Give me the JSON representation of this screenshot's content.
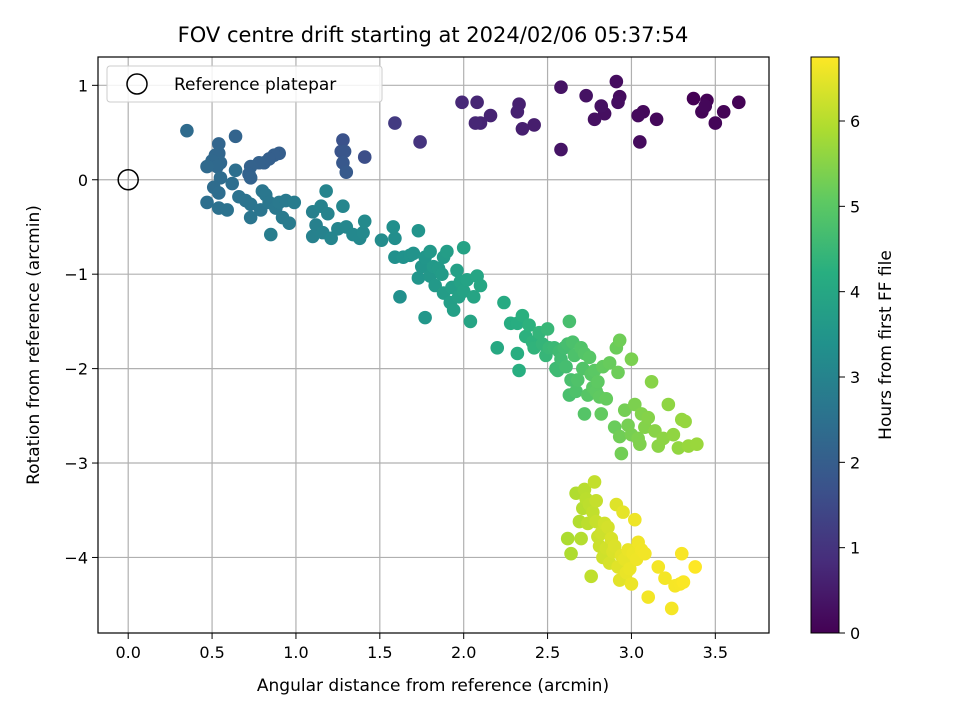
{
  "chart_data": {
    "type": "scatter",
    "title": "FOV centre drift starting at 2024/02/06 05:37:54",
    "xlabel": "Angular distance from reference (arcmin)",
    "ylabel": "Rotation from reference (arcmin)",
    "xlim": [
      -0.18,
      3.82
    ],
    "ylim": [
      -4.8,
      1.3
    ],
    "xticks": [
      0.0,
      0.5,
      1.0,
      1.5,
      2.0,
      2.5,
      3.0,
      3.5
    ],
    "xtick_labels": [
      "0.0",
      "0.5",
      "1.0",
      "1.5",
      "2.0",
      "2.5",
      "3.0",
      "3.5"
    ],
    "yticks": [
      1,
      0,
      -1,
      -2,
      -3,
      -4
    ],
    "ytick_labels": [
      "1",
      "0",
      "−1",
      "−2",
      "−3",
      "−4"
    ],
    "grid": true,
    "legend": {
      "placement": "top-left",
      "entries": [
        {
          "label": "Reference platepar",
          "marker": "open-circle",
          "x": 0.0,
          "y": 0.0
        }
      ]
    },
    "colorbar": {
      "label": "Hours from first FF file",
      "colormap": "viridis",
      "range": [
        0,
        6.75
      ],
      "ticks": [
        0,
        1,
        2,
        3,
        4,
        5,
        6
      ],
      "tick_labels": [
        "0",
        "1",
        "2",
        "3",
        "4",
        "5",
        "6"
      ]
    },
    "points": [
      {
        "x": 3.37,
        "y": 0.86,
        "t": 0.0
      },
      {
        "x": 3.45,
        "y": 0.84,
        "t": 0.02
      },
      {
        "x": 3.64,
        "y": 0.82,
        "t": 0.03
      },
      {
        "x": 3.55,
        "y": 0.72,
        "t": 0.05
      },
      {
        "x": 3.42,
        "y": 0.72,
        "t": 0.07
      },
      {
        "x": 3.5,
        "y": 0.6,
        "t": 0.09
      },
      {
        "x": 3.44,
        "y": 0.78,
        "t": 0.11
      },
      {
        "x": 3.15,
        "y": 0.64,
        "t": 0.13
      },
      {
        "x": 3.07,
        "y": 0.72,
        "t": 0.15
      },
      {
        "x": 3.04,
        "y": 0.68,
        "t": 0.17
      },
      {
        "x": 3.05,
        "y": 0.4,
        "t": 0.19
      },
      {
        "x": 2.93,
        "y": 0.88,
        "t": 0.21
      },
      {
        "x": 2.91,
        "y": 1.04,
        "t": 0.23
      },
      {
        "x": 2.92,
        "y": 0.82,
        "t": 0.25
      },
      {
        "x": 2.84,
        "y": 0.7,
        "t": 0.27
      },
      {
        "x": 2.78,
        "y": 0.64,
        "t": 0.29
      },
      {
        "x": 2.82,
        "y": 0.78,
        "t": 0.31
      },
      {
        "x": 2.73,
        "y": 0.89,
        "t": 0.33
      },
      {
        "x": 2.58,
        "y": 0.98,
        "t": 0.35
      },
      {
        "x": 2.58,
        "y": 0.32,
        "t": 0.37
      },
      {
        "x": 2.42,
        "y": 0.58,
        "t": 0.55
      },
      {
        "x": 2.35,
        "y": 0.54,
        "t": 0.58
      },
      {
        "x": 2.33,
        "y": 0.8,
        "t": 0.6
      },
      {
        "x": 2.32,
        "y": 0.72,
        "t": 0.62
      },
      {
        "x": 2.16,
        "y": 0.68,
        "t": 0.65
      },
      {
        "x": 2.1,
        "y": 0.6,
        "t": 0.68
      },
      {
        "x": 2.08,
        "y": 0.82,
        "t": 0.7
      },
      {
        "x": 2.07,
        "y": 0.6,
        "t": 0.72
      },
      {
        "x": 1.99,
        "y": 0.82,
        "t": 0.75
      },
      {
        "x": 1.74,
        "y": 0.4,
        "t": 1.0
      },
      {
        "x": 1.59,
        "y": 0.6,
        "t": 1.15
      },
      {
        "x": 1.41,
        "y": 0.24,
        "t": 1.6
      },
      {
        "x": 1.28,
        "y": 0.42,
        "t": 1.7
      },
      {
        "x": 1.27,
        "y": 0.3,
        "t": 1.75
      },
      {
        "x": 1.29,
        "y": 0.3,
        "t": 1.8
      },
      {
        "x": 1.28,
        "y": 0.18,
        "t": 1.85
      },
      {
        "x": 1.3,
        "y": 0.08,
        "t": 1.9
      },
      {
        "x": 0.9,
        "y": 0.28,
        "t": 2.0
      },
      {
        "x": 0.87,
        "y": 0.26,
        "t": 2.02
      },
      {
        "x": 0.84,
        "y": 0.22,
        "t": 2.04
      },
      {
        "x": 0.81,
        "y": 0.18,
        "t": 2.06
      },
      {
        "x": 0.78,
        "y": 0.18,
        "t": 2.08
      },
      {
        "x": 0.73,
        "y": 0.14,
        "t": 2.1
      },
      {
        "x": 0.72,
        "y": 0.06,
        "t": 2.12
      },
      {
        "x": 0.73,
        "y": 0.02,
        "t": 2.14
      },
      {
        "x": 0.64,
        "y": 0.46,
        "t": 2.16
      },
      {
        "x": 0.54,
        "y": 0.38,
        "t": 2.2
      },
      {
        "x": 0.54,
        "y": 0.28,
        "t": 2.22
      },
      {
        "x": 0.52,
        "y": 0.26,
        "t": 2.24
      },
      {
        "x": 0.55,
        "y": 0.18,
        "t": 2.26
      },
      {
        "x": 0.5,
        "y": 0.2,
        "t": 2.28
      },
      {
        "x": 0.53,
        "y": 0.14,
        "t": 2.3
      },
      {
        "x": 0.47,
        "y": 0.14,
        "t": 2.32
      },
      {
        "x": 0.35,
        "y": 0.52,
        "t": 2.34
      },
      {
        "x": 0.55,
        "y": 0.02,
        "t": 2.36
      },
      {
        "x": 0.51,
        "y": -0.08,
        "t": 2.38
      },
      {
        "x": 0.54,
        "y": -0.14,
        "t": 2.4
      },
      {
        "x": 0.62,
        "y": -0.04,
        "t": 2.42
      },
      {
        "x": 0.64,
        "y": 0.1,
        "t": 2.44
      },
      {
        "x": 0.47,
        "y": -0.24,
        "t": 2.46
      },
      {
        "x": 0.54,
        "y": -0.3,
        "t": 2.5
      },
      {
        "x": 0.59,
        "y": -0.32,
        "t": 2.52
      },
      {
        "x": 0.66,
        "y": -0.18,
        "t": 2.54
      },
      {
        "x": 0.7,
        "y": -0.22,
        "t": 2.56
      },
      {
        "x": 0.73,
        "y": -0.26,
        "t": 2.58
      },
      {
        "x": 0.79,
        "y": -0.32,
        "t": 2.6
      },
      {
        "x": 0.73,
        "y": -0.4,
        "t": 2.62
      },
      {
        "x": 0.8,
        "y": -0.12,
        "t": 2.64
      },
      {
        "x": 0.82,
        "y": -0.16,
        "t": 2.66
      },
      {
        "x": 0.84,
        "y": -0.24,
        "t": 2.68
      },
      {
        "x": 0.88,
        "y": -0.3,
        "t": 2.7
      },
      {
        "x": 0.9,
        "y": -0.24,
        "t": 2.72
      },
      {
        "x": 0.94,
        "y": -0.22,
        "t": 2.74
      },
      {
        "x": 0.92,
        "y": -0.4,
        "t": 2.76
      },
      {
        "x": 0.96,
        "y": -0.46,
        "t": 2.78
      },
      {
        "x": 0.99,
        "y": -0.24,
        "t": 2.8
      },
      {
        "x": 0.85,
        "y": -0.58,
        "t": 2.82
      },
      {
        "x": 1.1,
        "y": -0.34,
        "t": 2.9
      },
      {
        "x": 1.12,
        "y": -0.48,
        "t": 2.92
      },
      {
        "x": 1.1,
        "y": -0.6,
        "t": 2.94
      },
      {
        "x": 1.16,
        "y": -0.56,
        "t": 2.96
      },
      {
        "x": 1.15,
        "y": -0.28,
        "t": 2.98
      },
      {
        "x": 1.19,
        "y": -0.36,
        "t": 3.0
      },
      {
        "x": 1.18,
        "y": -0.12,
        "t": 3.02
      },
      {
        "x": 1.21,
        "y": -0.62,
        "t": 3.04
      },
      {
        "x": 1.25,
        "y": -0.52,
        "t": 3.06
      },
      {
        "x": 1.28,
        "y": -0.28,
        "t": 3.08
      },
      {
        "x": 1.3,
        "y": -0.5,
        "t": 3.1
      },
      {
        "x": 1.34,
        "y": -0.58,
        "t": 3.12
      },
      {
        "x": 1.38,
        "y": -0.62,
        "t": 3.14
      },
      {
        "x": 1.4,
        "y": -0.56,
        "t": 3.16
      },
      {
        "x": 1.41,
        "y": -0.44,
        "t": 3.18
      },
      {
        "x": 1.51,
        "y": -0.64,
        "t": 3.25
      },
      {
        "x": 1.59,
        "y": -0.62,
        "t": 3.3
      },
      {
        "x": 1.58,
        "y": -0.5,
        "t": 3.32
      },
      {
        "x": 1.59,
        "y": -0.82,
        "t": 3.34
      },
      {
        "x": 1.62,
        "y": -1.24,
        "t": 3.36
      },
      {
        "x": 1.64,
        "y": -0.82,
        "t": 3.4
      },
      {
        "x": 1.68,
        "y": -0.8,
        "t": 3.42
      },
      {
        "x": 1.7,
        "y": -0.78,
        "t": 3.44
      },
      {
        "x": 1.73,
        "y": -0.54,
        "t": 3.46
      },
      {
        "x": 1.73,
        "y": -1.04,
        "t": 3.48
      },
      {
        "x": 1.75,
        "y": -0.92,
        "t": 3.5
      },
      {
        "x": 1.77,
        "y": -0.82,
        "t": 3.52
      },
      {
        "x": 1.77,
        "y": -1.46,
        "t": 3.54
      },
      {
        "x": 1.8,
        "y": -1.02,
        "t": 3.56
      },
      {
        "x": 1.8,
        "y": -0.76,
        "t": 3.58
      },
      {
        "x": 1.82,
        "y": -0.92,
        "t": 3.6
      },
      {
        "x": 1.83,
        "y": -1.12,
        "t": 3.62
      },
      {
        "x": 1.85,
        "y": -0.94,
        "t": 3.64
      },
      {
        "x": 1.87,
        "y": -1.0,
        "t": 3.66
      },
      {
        "x": 1.88,
        "y": -0.82,
        "t": 3.68
      },
      {
        "x": 1.88,
        "y": -1.2,
        "t": 3.7
      },
      {
        "x": 1.9,
        "y": -0.76,
        "t": 3.72
      },
      {
        "x": 1.92,
        "y": -1.3,
        "t": 3.74
      },
      {
        "x": 1.93,
        "y": -1.14,
        "t": 3.76
      },
      {
        "x": 1.94,
        "y": -1.38,
        "t": 3.78
      },
      {
        "x": 1.96,
        "y": -0.96,
        "t": 3.8
      },
      {
        "x": 1.97,
        "y": -1.24,
        "t": 3.82
      },
      {
        "x": 1.98,
        "y": -1.08,
        "t": 3.84
      },
      {
        "x": 2.0,
        "y": -0.72,
        "t": 3.86
      },
      {
        "x": 2.0,
        "y": -1.18,
        "t": 3.88
      },
      {
        "x": 2.02,
        "y": -1.06,
        "t": 3.9
      },
      {
        "x": 2.04,
        "y": -1.5,
        "t": 3.92
      },
      {
        "x": 2.06,
        "y": -1.24,
        "t": 3.94
      },
      {
        "x": 2.08,
        "y": -1.02,
        "t": 3.96
      },
      {
        "x": 2.1,
        "y": -1.12,
        "t": 3.98
      },
      {
        "x": 2.2,
        "y": -1.78,
        "t": 4.05
      },
      {
        "x": 2.24,
        "y": -1.3,
        "t": 4.1
      },
      {
        "x": 2.28,
        "y": -1.52,
        "t": 4.15
      },
      {
        "x": 2.32,
        "y": -1.52,
        "t": 4.18
      },
      {
        "x": 2.32,
        "y": -1.84,
        "t": 4.2
      },
      {
        "x": 2.33,
        "y": -2.02,
        "t": 4.22
      },
      {
        "x": 2.35,
        "y": -1.44,
        "t": 4.25
      },
      {
        "x": 2.37,
        "y": -1.66,
        "t": 4.28
      },
      {
        "x": 2.39,
        "y": -1.54,
        "t": 4.3
      },
      {
        "x": 2.41,
        "y": -1.72,
        "t": 4.33
      },
      {
        "x": 2.42,
        "y": -1.78,
        "t": 4.36
      },
      {
        "x": 2.45,
        "y": -1.62,
        "t": 4.4
      },
      {
        "x": 2.47,
        "y": -1.74,
        "t": 4.42
      },
      {
        "x": 2.49,
        "y": -1.86,
        "t": 4.45
      },
      {
        "x": 2.5,
        "y": -1.58,
        "t": 4.48
      },
      {
        "x": 2.51,
        "y": -1.78,
        "t": 4.5
      },
      {
        "x": 2.54,
        "y": -1.78,
        "t": 4.53
      },
      {
        "x": 2.55,
        "y": -2.0,
        "t": 4.56
      },
      {
        "x": 2.56,
        "y": -2.02,
        "t": 4.58
      },
      {
        "x": 2.57,
        "y": -1.82,
        "t": 4.6
      },
      {
        "x": 2.58,
        "y": -1.9,
        "t": 4.62
      },
      {
        "x": 2.6,
        "y": -1.78,
        "t": 4.65
      },
      {
        "x": 2.61,
        "y": -1.98,
        "t": 4.68
      },
      {
        "x": 2.62,
        "y": -1.74,
        "t": 4.7
      },
      {
        "x": 2.63,
        "y": -1.5,
        "t": 4.72
      },
      {
        "x": 2.63,
        "y": -2.28,
        "t": 4.74
      },
      {
        "x": 2.64,
        "y": -2.12,
        "t": 4.76
      },
      {
        "x": 2.65,
        "y": -1.72,
        "t": 4.78
      },
      {
        "x": 2.66,
        "y": -1.86,
        "t": 4.8
      },
      {
        "x": 2.67,
        "y": -2.24,
        "t": 4.82
      },
      {
        "x": 2.68,
        "y": -2.12,
        "t": 4.84
      },
      {
        "x": 2.7,
        "y": -1.78,
        "t": 4.86
      },
      {
        "x": 2.71,
        "y": -2.0,
        "t": 4.88
      },
      {
        "x": 2.72,
        "y": -1.84,
        "t": 4.9
      },
      {
        "x": 2.72,
        "y": -2.48,
        "t": 4.92
      },
      {
        "x": 2.74,
        "y": -2.28,
        "t": 4.94
      },
      {
        "x": 2.75,
        "y": -1.88,
        "t": 4.96
      },
      {
        "x": 2.76,
        "y": -2.06,
        "t": 4.98
      },
      {
        "x": 2.77,
        "y": -2.2,
        "t": 5.0
      },
      {
        "x": 2.78,
        "y": -2.02,
        "t": 5.02
      },
      {
        "x": 2.79,
        "y": -2.24,
        "t": 5.04
      },
      {
        "x": 2.8,
        "y": -2.14,
        "t": 5.06
      },
      {
        "x": 2.81,
        "y": -2.3,
        "t": 5.08
      },
      {
        "x": 2.82,
        "y": -2.48,
        "t": 5.1
      },
      {
        "x": 2.83,
        "y": -1.98,
        "t": 5.12
      },
      {
        "x": 2.85,
        "y": -2.32,
        "t": 5.14
      },
      {
        "x": 2.87,
        "y": -1.94,
        "t": 5.16
      },
      {
        "x": 2.9,
        "y": -2.62,
        "t": 5.18
      },
      {
        "x": 2.91,
        "y": -1.78,
        "t": 5.2
      },
      {
        "x": 2.92,
        "y": -2.04,
        "t": 5.22
      },
      {
        "x": 2.93,
        "y": -1.7,
        "t": 5.24
      },
      {
        "x": 2.93,
        "y": -2.72,
        "t": 5.26
      },
      {
        "x": 2.94,
        "y": -2.9,
        "t": 5.28
      },
      {
        "x": 2.96,
        "y": -2.44,
        "t": 5.3
      },
      {
        "x": 2.98,
        "y": -2.6,
        "t": 5.32
      },
      {
        "x": 3.0,
        "y": -2.7,
        "t": 5.34
      },
      {
        "x": 3.0,
        "y": -1.9,
        "t": 5.36
      },
      {
        "x": 3.02,
        "y": -2.38,
        "t": 5.38
      },
      {
        "x": 3.04,
        "y": -2.74,
        "t": 5.4
      },
      {
        "x": 3.05,
        "y": -2.8,
        "t": 5.42
      },
      {
        "x": 3.06,
        "y": -2.48,
        "t": 5.44
      },
      {
        "x": 3.08,
        "y": -2.62,
        "t": 5.46
      },
      {
        "x": 3.1,
        "y": -2.52,
        "t": 5.48
      },
      {
        "x": 3.12,
        "y": -2.14,
        "t": 5.5
      },
      {
        "x": 3.14,
        "y": -2.66,
        "t": 5.52
      },
      {
        "x": 3.16,
        "y": -2.82,
        "t": 5.54
      },
      {
        "x": 3.19,
        "y": -2.74,
        "t": 5.56
      },
      {
        "x": 3.22,
        "y": -2.38,
        "t": 5.58
      },
      {
        "x": 3.25,
        "y": -2.7,
        "t": 5.6
      },
      {
        "x": 3.28,
        "y": -2.84,
        "t": 5.62
      },
      {
        "x": 3.3,
        "y": -2.54,
        "t": 5.64
      },
      {
        "x": 3.32,
        "y": -2.56,
        "t": 5.66
      },
      {
        "x": 3.34,
        "y": -2.82,
        "t": 5.68
      },
      {
        "x": 3.39,
        "y": -2.8,
        "t": 5.7
      },
      {
        "x": 2.62,
        "y": -3.8,
        "t": 5.9
      },
      {
        "x": 2.64,
        "y": -3.96,
        "t": 5.92
      },
      {
        "x": 2.67,
        "y": -3.32,
        "t": 5.94
      },
      {
        "x": 2.69,
        "y": -3.62,
        "t": 5.96
      },
      {
        "x": 2.7,
        "y": -3.8,
        "t": 5.98
      },
      {
        "x": 2.71,
        "y": -3.48,
        "t": 6.0
      },
      {
        "x": 2.72,
        "y": -3.28,
        "t": 6.02
      },
      {
        "x": 2.73,
        "y": -3.38,
        "t": 6.04
      },
      {
        "x": 2.74,
        "y": -3.64,
        "t": 6.06
      },
      {
        "x": 2.75,
        "y": -3.44,
        "t": 6.08
      },
      {
        "x": 2.76,
        "y": -4.2,
        "t": 6.1
      },
      {
        "x": 2.77,
        "y": -3.52,
        "t": 6.12
      },
      {
        "x": 2.78,
        "y": -3.2,
        "t": 6.14
      },
      {
        "x": 2.79,
        "y": -3.4,
        "t": 6.16
      },
      {
        "x": 2.79,
        "y": -3.62,
        "t": 6.18
      },
      {
        "x": 2.8,
        "y": -3.78,
        "t": 6.2
      },
      {
        "x": 2.81,
        "y": -3.88,
        "t": 6.22
      },
      {
        "x": 2.82,
        "y": -3.74,
        "t": 6.24
      },
      {
        "x": 2.83,
        "y": -4.0,
        "t": 6.26
      },
      {
        "x": 2.84,
        "y": -3.64,
        "t": 6.28
      },
      {
        "x": 2.85,
        "y": -3.9,
        "t": 6.3
      },
      {
        "x": 2.86,
        "y": -3.68,
        "t": 6.32
      },
      {
        "x": 2.87,
        "y": -4.06,
        "t": 6.34
      },
      {
        "x": 2.88,
        "y": -3.8,
        "t": 6.36
      },
      {
        "x": 2.89,
        "y": -3.94,
        "t": 6.38
      },
      {
        "x": 2.9,
        "y": -3.88,
        "t": 6.4
      },
      {
        "x": 2.91,
        "y": -3.44,
        "t": 6.42
      },
      {
        "x": 2.92,
        "y": -4.1,
        "t": 6.44
      },
      {
        "x": 2.93,
        "y": -4.24,
        "t": 6.46
      },
      {
        "x": 2.94,
        "y": -3.98,
        "t": 6.48
      },
      {
        "x": 2.95,
        "y": -3.52,
        "t": 6.5
      },
      {
        "x": 2.96,
        "y": -4.02,
        "t": 6.52
      },
      {
        "x": 2.97,
        "y": -4.16,
        "t": 6.54
      },
      {
        "x": 2.98,
        "y": -3.92,
        "t": 6.55
      },
      {
        "x": 2.99,
        "y": -4.12,
        "t": 6.56
      },
      {
        "x": 3.0,
        "y": -4.28,
        "t": 6.57
      },
      {
        "x": 3.01,
        "y": -3.96,
        "t": 6.58
      },
      {
        "x": 3.02,
        "y": -3.6,
        "t": 6.59
      },
      {
        "x": 3.03,
        "y": -4.02,
        "t": 6.6
      },
      {
        "x": 3.04,
        "y": -3.84,
        "t": 6.61
      },
      {
        "x": 3.06,
        "y": -3.92,
        "t": 6.62
      },
      {
        "x": 3.08,
        "y": -3.96,
        "t": 6.63
      },
      {
        "x": 3.1,
        "y": -4.42,
        "t": 6.64
      },
      {
        "x": 3.16,
        "y": -4.1,
        "t": 6.65
      },
      {
        "x": 3.2,
        "y": -4.22,
        "t": 6.66
      },
      {
        "x": 3.24,
        "y": -4.54,
        "t": 6.67
      },
      {
        "x": 3.26,
        "y": -4.3,
        "t": 6.68
      },
      {
        "x": 3.29,
        "y": -4.28,
        "t": 6.69
      },
      {
        "x": 3.3,
        "y": -3.96,
        "t": 6.7
      },
      {
        "x": 3.31,
        "y": -4.26,
        "t": 6.72
      },
      {
        "x": 3.38,
        "y": -4.1,
        "t": 6.75
      }
    ]
  }
}
